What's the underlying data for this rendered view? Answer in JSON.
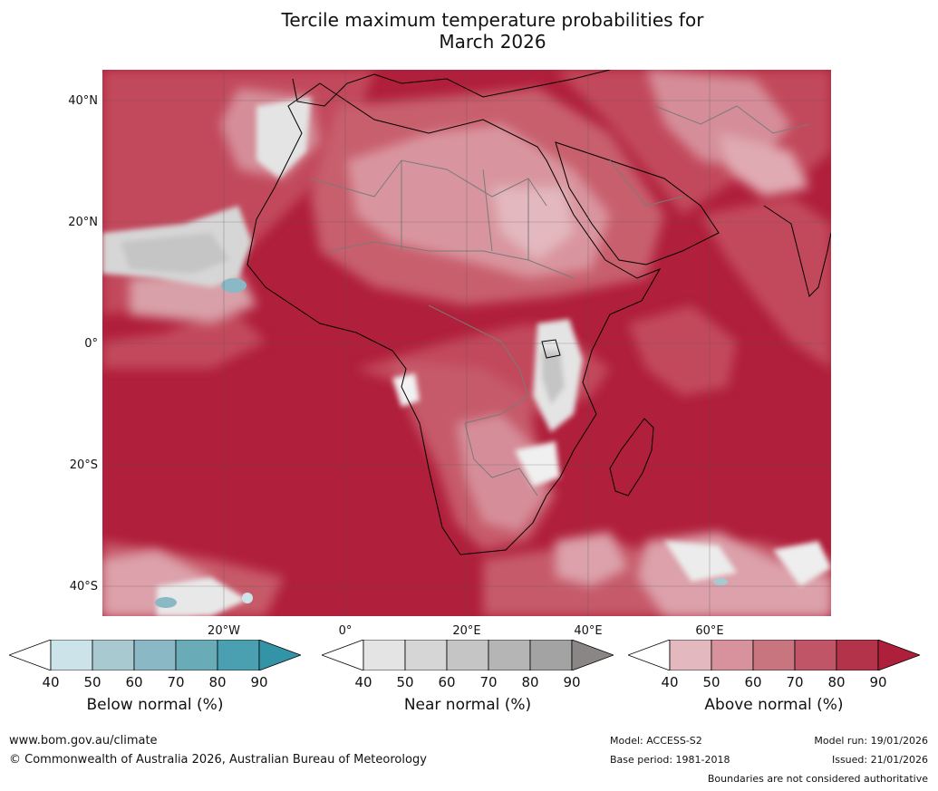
{
  "title_line1": "Tercile maximum temperature probabilities for",
  "title_line2": "March 2026",
  "lat_labels": [
    "40°N",
    "20°N",
    "0°",
    "20°S",
    "40°S"
  ],
  "lon_labels": [
    "20°W",
    "0°",
    "20°E",
    "40°E",
    "60°E"
  ],
  "legends": [
    {
      "caption": "Below normal (%)",
      "ticks": [
        "40",
        "50",
        "60",
        "70",
        "80",
        "90"
      ],
      "colors": [
        "#ffffff",
        "#cde3ea",
        "#a9c9d1",
        "#8ab8c4",
        "#6aabb8",
        "#4a9fb0",
        "#3394a8"
      ]
    },
    {
      "caption": "Near normal (%)",
      "ticks": [
        "40",
        "50",
        "60",
        "70",
        "80",
        "90"
      ],
      "colors": [
        "#ffffff",
        "#e4e4e4",
        "#d6d6d6",
        "#c5c5c5",
        "#b5b5b5",
        "#a3a3a3",
        "#8a8686"
      ]
    },
    {
      "caption": "Above normal (%)",
      "ticks": [
        "40",
        "50",
        "60",
        "70",
        "80",
        "90"
      ],
      "colors": [
        "#ffffff",
        "#e3b8be",
        "#d7929d",
        "#c97580",
        "#bf5566",
        "#b3344a",
        "#ad1f3a"
      ]
    }
  ],
  "footer": {
    "website": "www.bom.gov.au/climate",
    "copyright": "© Commonwealth of Australia 2026, Australian Bureau of Meteorology",
    "model": "Model: ACCESS-S2",
    "base_period": "Base period: 1981-2018",
    "model_run": "Model run: 19/01/2026",
    "issued": "Issued: 21/01/2026",
    "disclaimer": "Boundaries are not considered authoritative"
  }
}
